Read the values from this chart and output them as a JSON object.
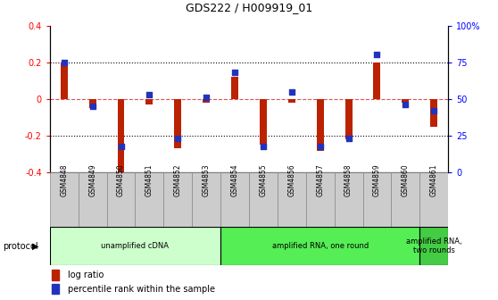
{
  "title": "GDS222 / H009919_01",
  "samples": [
    "GSM4848",
    "GSM4849",
    "GSM4850",
    "GSM4851",
    "GSM4852",
    "GSM4853",
    "GSM4854",
    "GSM4855",
    "GSM4856",
    "GSM4857",
    "GSM4858",
    "GSM4859",
    "GSM4860",
    "GSM4861"
  ],
  "log_ratio": [
    0.2,
    -0.05,
    -0.4,
    -0.03,
    -0.27,
    -0.02,
    0.12,
    -0.25,
    -0.02,
    -0.28,
    -0.22,
    0.2,
    -0.02,
    -0.15
  ],
  "percentile_rank": [
    75,
    45,
    18,
    53,
    23,
    51,
    68,
    18,
    55,
    18,
    23,
    80,
    46,
    42
  ],
  "ylim_left": [
    -0.4,
    0.4
  ],
  "ylim_right": [
    0,
    100
  ],
  "yticks_left": [
    -0.4,
    -0.2,
    0.0,
    0.2,
    0.4
  ],
  "yticks_right": [
    0,
    25,
    50,
    75,
    100
  ],
  "ytick_labels_right": [
    "0",
    "25",
    "50",
    "75",
    "100%"
  ],
  "bar_color": "#BB2200",
  "dot_color": "#2233BB",
  "ref_line_color": "#DD5555",
  "dotted_line_color": "#000000",
  "bg_color": "#FFFFFF",
  "plot_bg": "#FFFFFF",
  "protocol_groups": [
    {
      "label": "unamplified cDNA",
      "start": 0,
      "end": 5,
      "color": "#CCFFCC"
    },
    {
      "label": "amplified RNA, one round",
      "start": 6,
      "end": 12,
      "color": "#55EE55"
    },
    {
      "label": "amplified RNA,\ntwo rounds",
      "start": 13,
      "end": 13,
      "color": "#44CC44"
    }
  ],
  "xticklabel_bg": "#CCCCCC",
  "bar_width": 0.25,
  "dot_size": 18,
  "legend_items": [
    "log ratio",
    "percentile rank within the sample"
  ],
  "legend_colors": [
    "#BB2200",
    "#2233BB"
  ],
  "left_axis_color": "red",
  "right_axis_color": "blue"
}
